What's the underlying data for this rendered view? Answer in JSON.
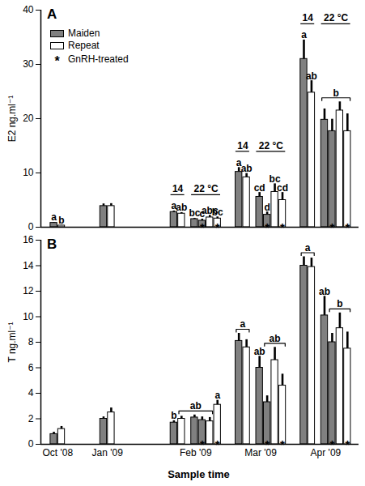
{
  "chart_data": {
    "type": "bar",
    "x_label": "Sample time",
    "categories": [
      "Oct '08",
      "Jan '09",
      "Feb '09",
      "Mar '09",
      "Apr '09"
    ],
    "series": [
      {
        "name": "Maiden",
        "color": "#808080"
      },
      {
        "name": "Repeat",
        "color": "#ffffff"
      }
    ],
    "gnrh_treated": {
      "symbol": "*",
      "label": "GnRH-treated"
    },
    "legend": "top-left",
    "panels": [
      {
        "panel": "A",
        "y_label": "E2 ng.ml⁻¹",
        "ylim": [
          0,
          40
        ],
        "yticks": [
          0,
          10,
          20,
          30,
          40
        ],
        "tick_labels": "y",
        "groups": [
          {
            "category": "Oct '08",
            "bars": [
              {
                "series": "Maiden",
                "value": 0.8,
                "error": 0.1
              },
              {
                "series": "Repeat",
                "value": 0.3,
                "error": 0.05
              }
            ]
          },
          {
            "category": "Jan '09",
            "bars": [
              {
                "series": "Maiden",
                "value": 3.9,
                "error": 0.4
              },
              {
                "series": "Repeat",
                "value": 3.9,
                "error": 0.45
              }
            ]
          },
          {
            "category": "Feb '09",
            "bars": [
              {
                "series": "Maiden",
                "value": 2.8,
                "error": 0.2
              },
              {
                "series": "Repeat",
                "value": 2.5,
                "error": 0.2
              },
              {
                "series": "Maiden",
                "value": 1.5,
                "error": 0.15
              },
              {
                "series": "Maiden",
                "value": 1.2,
                "error": 0.3,
                "gnrh": true
              },
              {
                "series": "Repeat",
                "value": 1.8,
                "error": 0.4
              },
              {
                "series": "Repeat",
                "value": 1.6,
                "error": 0.3,
                "gnrh": true
              }
            ]
          },
          {
            "category": "Mar '09",
            "bars": [
              {
                "series": "Maiden",
                "value": 10.2,
                "error": 0.8
              },
              {
                "series": "Repeat",
                "value": 9.2,
                "error": 0.7
              },
              {
                "series": "Maiden",
                "value": 5.6,
                "error": 0.8
              },
              {
                "series": "Maiden",
                "value": 2.3,
                "error": 0.5,
                "gnrh": true
              },
              {
                "series": "Repeat",
                "value": 6.5,
                "error": 1.5
              },
              {
                "series": "Repeat",
                "value": 5.0,
                "error": 1.4,
                "gnrh": true
              }
            ]
          },
          {
            "category": "Apr '09",
            "bars": [
              {
                "series": "Maiden",
                "value": 31.0,
                "error": 3.5
              },
              {
                "series": "Repeat",
                "value": 24.8,
                "error": 2.2
              },
              {
                "series": "Maiden",
                "value": 19.8,
                "error": 2.0
              },
              {
                "series": "Maiden",
                "value": 17.7,
                "error": 2.2,
                "gnrh": true
              },
              {
                "series": "Repeat",
                "value": 21.5,
                "error": 1.6
              },
              {
                "series": "Repeat",
                "value": 17.7,
                "error": 3.2,
                "gnrh": true
              }
            ]
          }
        ],
        "letters": [
          {
            "category": "Oct '08",
            "bars": [
              0,
              0
            ],
            "text": "a"
          },
          {
            "category": "Oct '08",
            "bars": [
              1,
              1
            ],
            "text": "b"
          },
          {
            "category": "Feb '09",
            "bars": [
              0,
              0
            ],
            "text": "a"
          },
          {
            "category": "Feb '09",
            "bars": [
              1,
              1
            ],
            "text": "ab"
          },
          {
            "category": "Feb '09",
            "bars": [
              2,
              2
            ],
            "text": "bc"
          },
          {
            "category": "Feb '09",
            "bars": [
              3,
              3
            ],
            "text": "c"
          },
          {
            "category": "Feb '09",
            "bars": [
              4,
              4
            ],
            "text": "abc"
          },
          {
            "category": "Feb '09",
            "bars": [
              5,
              5
            ],
            "text": "bc"
          },
          {
            "category": "Mar '09",
            "bars": [
              0,
              0
            ],
            "text": "a"
          },
          {
            "category": "Mar '09",
            "bars": [
              1,
              1
            ],
            "text": "ab"
          },
          {
            "category": "Mar '09",
            "bars": [
              2,
              2
            ],
            "text": "cd"
          },
          {
            "category": "Mar '09",
            "bars": [
              3,
              3
            ],
            "text": "d"
          },
          {
            "category": "Mar '09",
            "bars": [
              4,
              4
            ],
            "text": "bc"
          },
          {
            "category": "Mar '09",
            "bars": [
              5,
              5
            ],
            "text": "cd"
          },
          {
            "category": "Apr '09",
            "bars": [
              0,
              0
            ],
            "text": "a"
          },
          {
            "category": "Apr '09",
            "bars": [
              1,
              1
            ],
            "text": "ab"
          },
          {
            "category": "Apr '09",
            "bars": [
              2,
              5
            ],
            "text": "b"
          }
        ],
        "temperature_groups": [
          {
            "category": "Feb '09",
            "bars": [
              0,
              1
            ],
            "text": "14"
          },
          {
            "category": "Feb '09",
            "bars": [
              2,
              5
            ],
            "text": "22 °C"
          },
          {
            "category": "Mar '09",
            "bars": [
              0,
              1
            ],
            "text": "14"
          },
          {
            "category": "Mar '09",
            "bars": [
              2,
              5
            ],
            "text": "22 °C"
          },
          {
            "category": "Apr '09",
            "bars": [
              0,
              1
            ],
            "text": "14"
          },
          {
            "category": "Apr '09",
            "bars": [
              2,
              5
            ],
            "text": "22 °C"
          }
        ]
      },
      {
        "panel": "B",
        "y_label": "T ng.ml⁻¹",
        "ylim": [
          0,
          16
        ],
        "yticks": [
          0,
          2,
          4,
          6,
          8,
          10,
          12,
          14,
          16
        ],
        "groups": [
          {
            "category": "Oct '08",
            "bars": [
              {
                "series": "Maiden",
                "value": 0.8,
                "error": 0.15
              },
              {
                "series": "Repeat",
                "value": 1.2,
                "error": 0.2
              }
            ]
          },
          {
            "category": "Jan '09",
            "bars": [
              {
                "series": "Maiden",
                "value": 2.0,
                "error": 0.15
              },
              {
                "series": "Repeat",
                "value": 2.5,
                "error": 0.35
              }
            ]
          },
          {
            "category": "Feb '09",
            "bars": [
              {
                "series": "Maiden",
                "value": 1.7,
                "error": 0.15
              },
              {
                "series": "Repeat",
                "value": 2.0,
                "error": 0.2
              },
              {
                "series": "Maiden",
                "value": 2.1,
                "error": 0.2
              },
              {
                "series": "Maiden",
                "value": 1.9,
                "error": 0.25,
                "gnrh": true
              },
              {
                "series": "Repeat",
                "value": 1.8,
                "error": 0.3
              },
              {
                "series": "Repeat",
                "value": 3.1,
                "error": 0.35,
                "gnrh": true
              }
            ]
          },
          {
            "category": "Mar '09",
            "bars": [
              {
                "series": "Maiden",
                "value": 8.1,
                "error": 0.6
              },
              {
                "series": "Repeat",
                "value": 7.6,
                "error": 0.6
              },
              {
                "series": "Maiden",
                "value": 6.0,
                "error": 0.9
              },
              {
                "series": "Maiden",
                "value": 3.3,
                "error": 0.5,
                "gnrh": true
              },
              {
                "series": "Repeat",
                "value": 6.6,
                "error": 1.0
              },
              {
                "series": "Repeat",
                "value": 4.6,
                "error": 0.9,
                "gnrh": true
              }
            ]
          },
          {
            "category": "Apr '09",
            "bars": [
              {
                "series": "Maiden",
                "value": 14.0,
                "error": 0.7
              },
              {
                "series": "Repeat",
                "value": 13.9,
                "error": 0.7
              },
              {
                "series": "Maiden",
                "value": 10.1,
                "error": 1.5
              },
              {
                "series": "Maiden",
                "value": 8.0,
                "error": 0.7,
                "gnrh": true
              },
              {
                "series": "Repeat",
                "value": 9.1,
                "error": 1.2
              },
              {
                "series": "Repeat",
                "value": 7.5,
                "error": 1.3,
                "gnrh": true
              }
            ]
          }
        ],
        "letters": [
          {
            "category": "Feb '09",
            "bars": [
              0,
              0
            ],
            "text": "b"
          },
          {
            "category": "Feb '09",
            "bars": [
              1,
              4
            ],
            "text": "ab"
          },
          {
            "category": "Feb '09",
            "bars": [
              5,
              5
            ],
            "text": "a"
          },
          {
            "category": "Mar '09",
            "bars": [
              0,
              1
            ],
            "text": "a"
          },
          {
            "category": "Mar '09",
            "bars": [
              2,
              2
            ],
            "text": "ab"
          },
          {
            "category": "Mar '09",
            "bars": [
              3,
              5
            ],
            "text": "ab"
          },
          {
            "category": "Apr '09",
            "bars": [
              0,
              1
            ],
            "text": "a"
          },
          {
            "category": "Apr '09",
            "bars": [
              2,
              2
            ],
            "text": "ab"
          },
          {
            "category": "Apr '09",
            "bars": [
              3,
              5
            ],
            "text": "b"
          }
        ]
      }
    ]
  }
}
